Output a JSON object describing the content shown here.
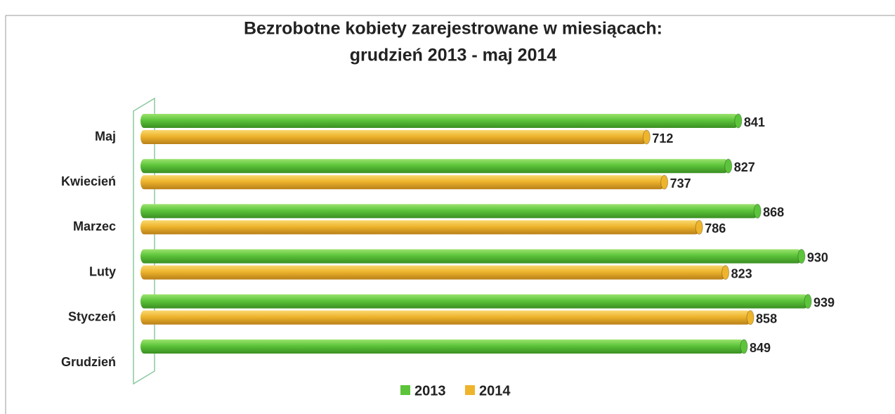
{
  "chart_data": {
    "type": "hbar",
    "title": [
      "Bezrobotne kobiety zarejestrowane w miesiącach:",
      "grudzień 2013 - maj 2014"
    ],
    "categories": [
      "Maj",
      "Kwiecień",
      "Marzec",
      "Luty",
      "Styczeń",
      "Grudzień"
    ],
    "series": [
      {
        "name": "2013",
        "color": "#5cc43a",
        "values": [
          841,
          827,
          868,
          930,
          939,
          849
        ]
      },
      {
        "name": "2014",
        "color": "#eeb42c",
        "values": [
          712,
          737,
          786,
          823,
          858,
          null
        ]
      }
    ],
    "legend": "bottom"
  }
}
